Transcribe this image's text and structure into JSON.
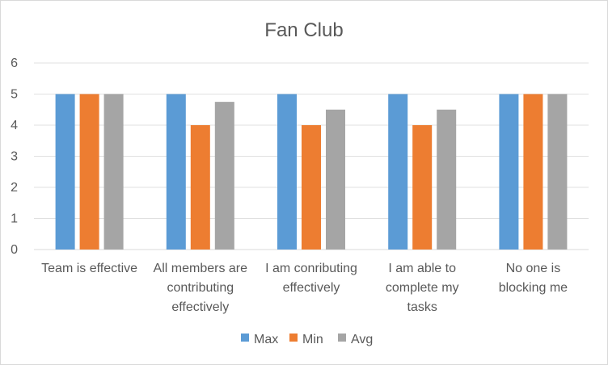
{
  "chart_data": {
    "type": "bar",
    "title": "Fan Club",
    "categories": [
      [
        "Team is effective"
      ],
      [
        "All members are",
        "contributing",
        "effectively"
      ],
      [
        "I am conributing",
        "effectively"
      ],
      [
        "I am able to",
        "complete my",
        "tasks"
      ],
      [
        "No one is",
        "blocking me"
      ]
    ],
    "series": [
      {
        "name": "Max",
        "color": "#5b9bd5",
        "values": [
          5,
          5,
          5,
          5,
          5
        ]
      },
      {
        "name": "Min",
        "color": "#ed7d31",
        "values": [
          5,
          4,
          4,
          4,
          5
        ]
      },
      {
        "name": "Avg",
        "color": "#a5a5a5",
        "values": [
          5,
          4.75,
          4.5,
          4.5,
          5
        ]
      }
    ],
    "yticks": [
      "0",
      "1",
      "2",
      "3",
      "4",
      "5",
      "6"
    ],
    "ylim": [
      0,
      6
    ],
    "grid": true,
    "legend": "bottom"
  }
}
